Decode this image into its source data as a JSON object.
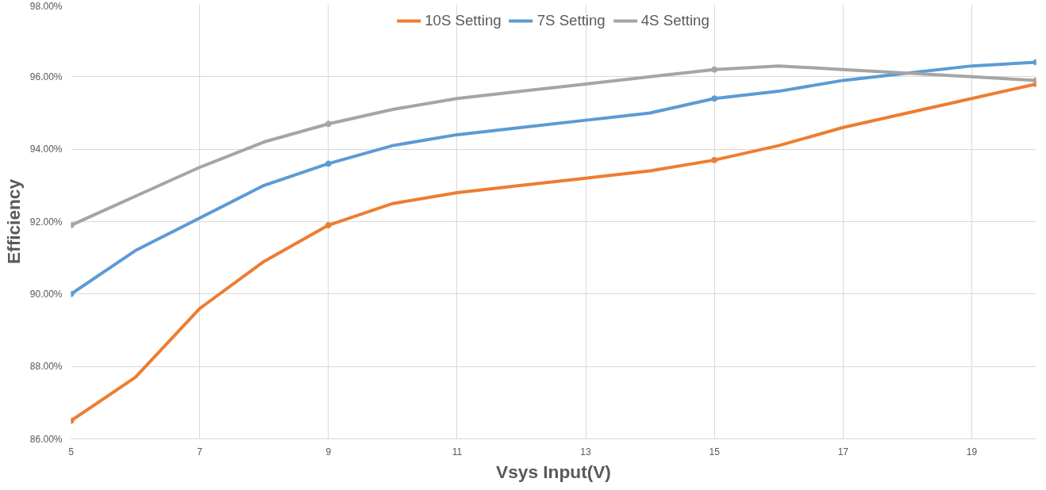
{
  "chart_data": {
    "type": "line",
    "xlabel": "Vsys Input(V)",
    "ylabel": "Efficiency",
    "x": [
      5,
      6,
      7,
      8,
      9,
      10,
      11,
      12,
      13,
      14,
      15,
      16,
      17,
      18,
      19,
      20
    ],
    "series": [
      {
        "name": "10S Setting",
        "color": "#ed7d31",
        "marker": "none",
        "values": [
          86.5,
          87.7,
          89.6,
          90.9,
          91.9,
          92.5,
          92.8,
          93.0,
          93.2,
          93.4,
          93.7,
          94.1,
          94.6,
          95.0,
          95.4,
          95.8
        ]
      },
      {
        "name": "7S Setting",
        "color": "#5b9bd5",
        "marker": "none",
        "values": [
          90.0,
          91.2,
          92.1,
          93.0,
          93.6,
          94.1,
          94.4,
          94.6,
          94.8,
          95.0,
          95.4,
          95.6,
          95.9,
          96.1,
          96.3,
          96.4
        ]
      },
      {
        "name": "4S Setting",
        "color": "#a5a5a5",
        "marker": "none",
        "values": [
          91.9,
          92.7,
          93.5,
          94.2,
          94.7,
          95.1,
          95.4,
          95.6,
          95.8,
          96.0,
          96.2,
          96.3,
          96.2,
          96.1,
          96.0,
          95.9
        ]
      },
      {
        "type": "scatter",
        "color": "#ed7d31",
        "x": [
          5,
          9,
          15,
          20
        ],
        "values": [
          86.5,
          91.9,
          93.7,
          95.8
        ]
      },
      {
        "type": "scatter",
        "color": "#5b9bd5",
        "x": [
          5,
          9,
          15,
          20
        ],
        "values": [
          90.0,
          93.6,
          95.4,
          96.4
        ]
      },
      {
        "type": "scatter",
        "color": "#a5a5a5",
        "x": [
          5,
          9,
          15,
          20
        ],
        "values": [
          91.9,
          94.7,
          96.2,
          95.9
        ]
      }
    ],
    "xlim": [
      5,
      20
    ],
    "xticks": [
      5,
      7,
      9,
      11,
      13,
      15,
      17,
      19
    ],
    "ylim": [
      86,
      98
    ],
    "yticks": [
      {
        "value": 86,
        "label": "86.00%"
      },
      {
        "value": 88,
        "label": "88.00%"
      },
      {
        "value": 90,
        "label": "90.00%"
      },
      {
        "value": 92,
        "label": "92.00%"
      },
      {
        "value": 94,
        "label": "94.00%"
      },
      {
        "value": 96,
        "label": "96.00%"
      },
      {
        "value": 98,
        "label": "98.00%"
      }
    ],
    "grid": true,
    "legend": "top",
    "marker": "circle",
    "line_style": "solid"
  }
}
